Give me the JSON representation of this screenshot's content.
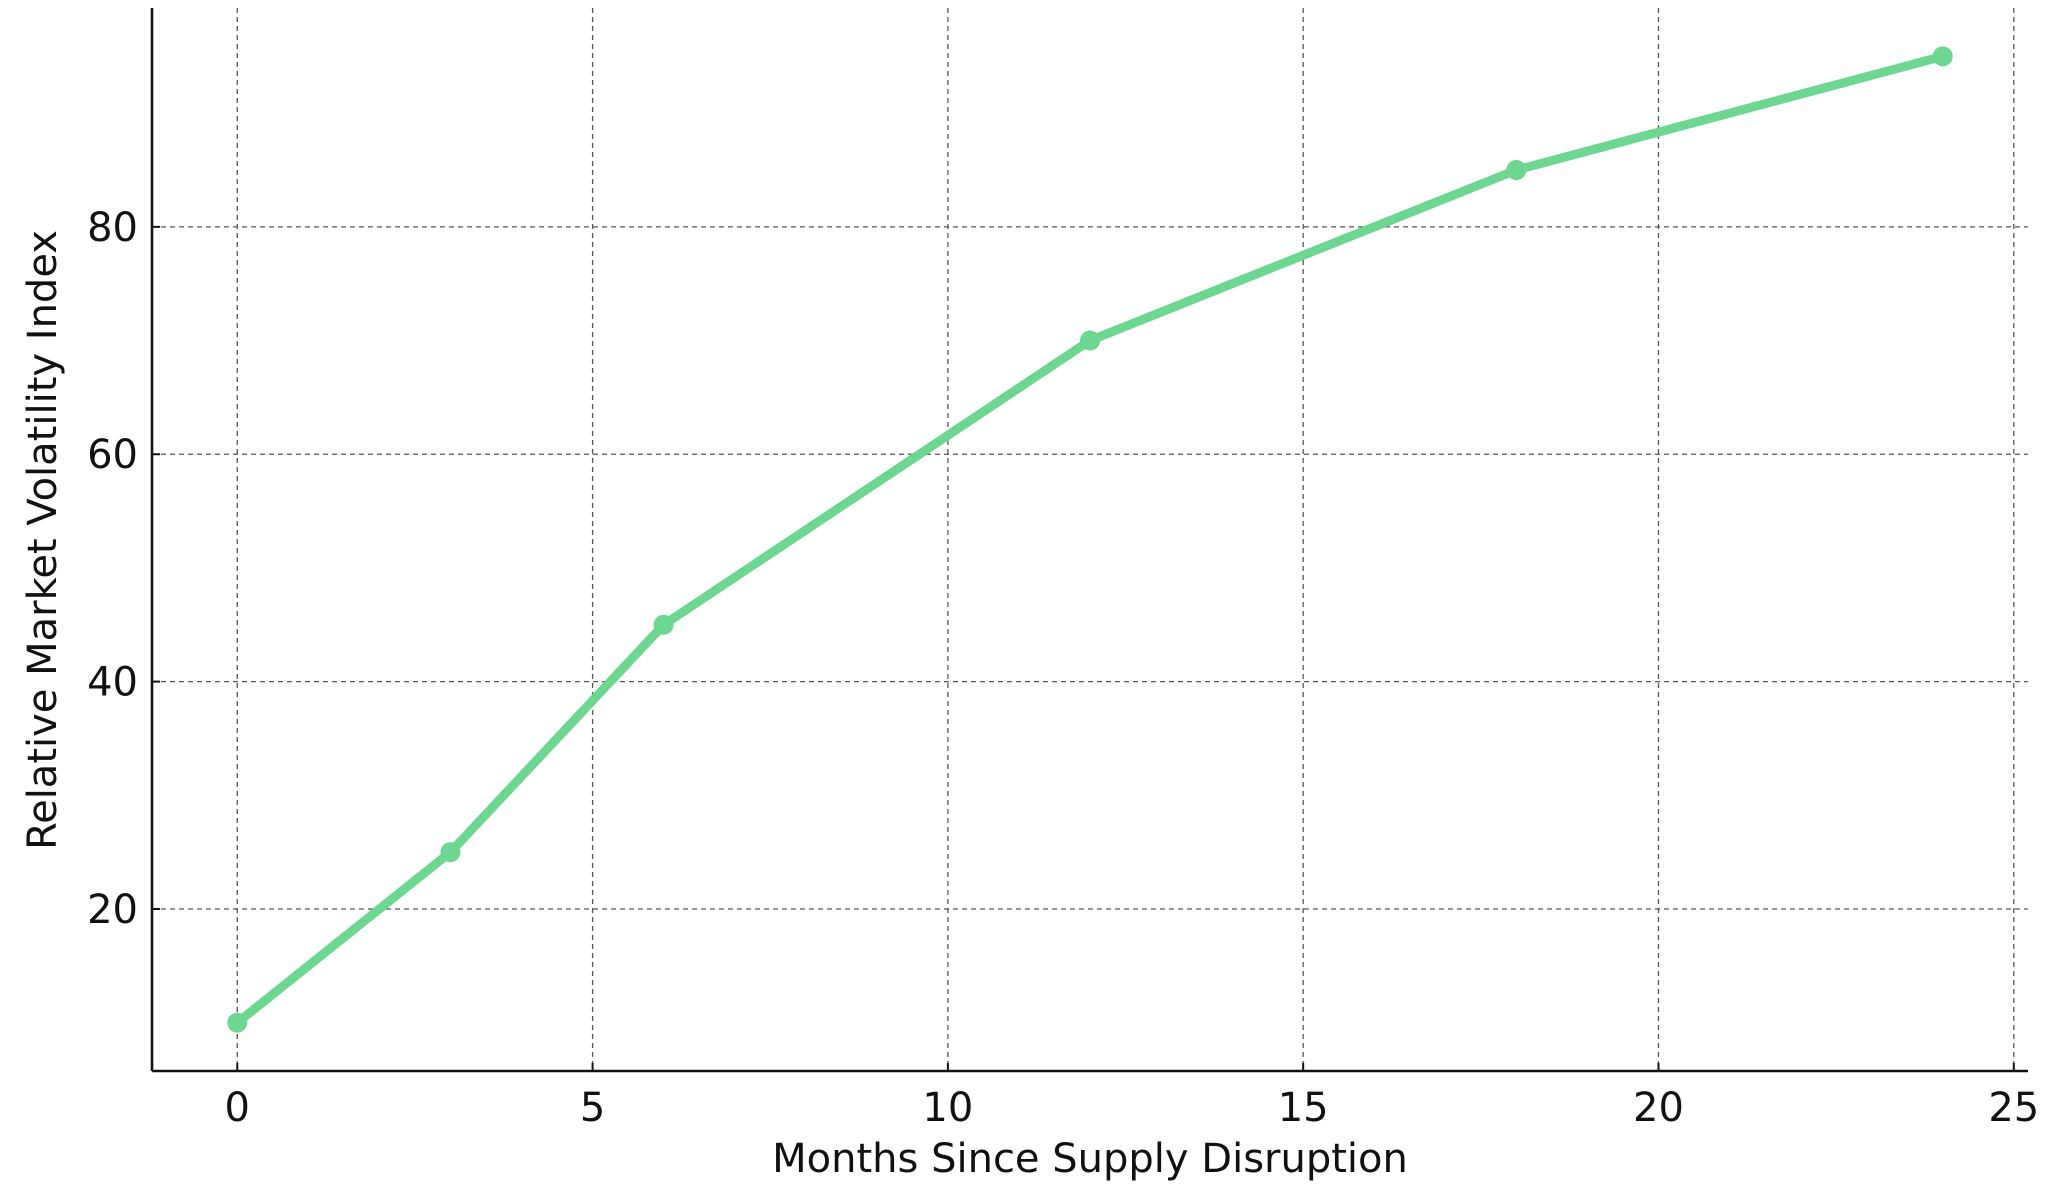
{
  "chart_data": {
    "type": "line",
    "xlabel": "Months Since Supply Disruption",
    "ylabel": "Relative Market Volatility Index",
    "x": [
      0,
      3,
      6,
      12,
      18,
      24
    ],
    "series": [
      {
        "color": "#6dd691",
        "values": [
          10,
          25,
          45,
          70,
          85,
          95
        ]
      }
    ],
    "xlim": [
      -1.2,
      25.2
    ],
    "xticks": [
      0,
      5,
      10,
      15,
      20,
      25
    ],
    "ylim": [
      5.75,
      99.25
    ],
    "yticks": [
      20,
      40,
      60,
      80
    ],
    "grid": true
  }
}
